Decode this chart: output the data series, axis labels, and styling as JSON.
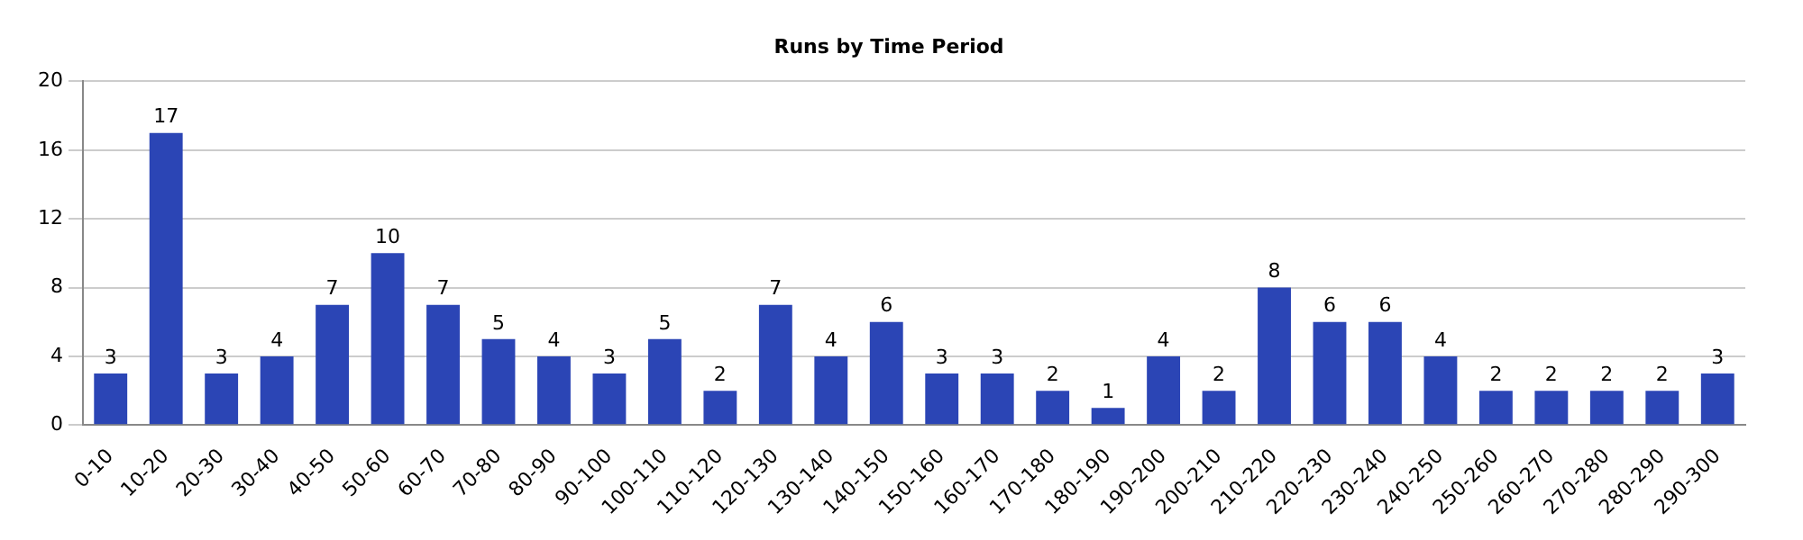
{
  "chart_data": {
    "type": "bar",
    "title": "Runs by Time Period",
    "categories": [
      "0-10",
      "10-20",
      "20-30",
      "30-40",
      "40-50",
      "50-60",
      "60-70",
      "70-80",
      "80-90",
      "90-100",
      "100-110",
      "110-120",
      "120-130",
      "130-140",
      "140-150",
      "150-160",
      "160-170",
      "170-180",
      "180-190",
      "190-200",
      "200-210",
      "210-220",
      "220-230",
      "230-240",
      "240-250",
      "250-260",
      "260-270",
      "270-280",
      "280-290",
      "290-300"
    ],
    "values": [
      3,
      17,
      3,
      4,
      7,
      10,
      7,
      5,
      4,
      3,
      5,
      2,
      7,
      4,
      6,
      3,
      3,
      2,
      1,
      4,
      2,
      8,
      6,
      6,
      4,
      2,
      2,
      2,
      2,
      3
    ],
    "color": "#2b45b5",
    "ylim": [
      0,
      20
    ],
    "yticks": [
      0,
      4,
      8,
      12,
      16,
      20
    ],
    "grid": "y",
    "data_labels": true,
    "legend": false
  }
}
